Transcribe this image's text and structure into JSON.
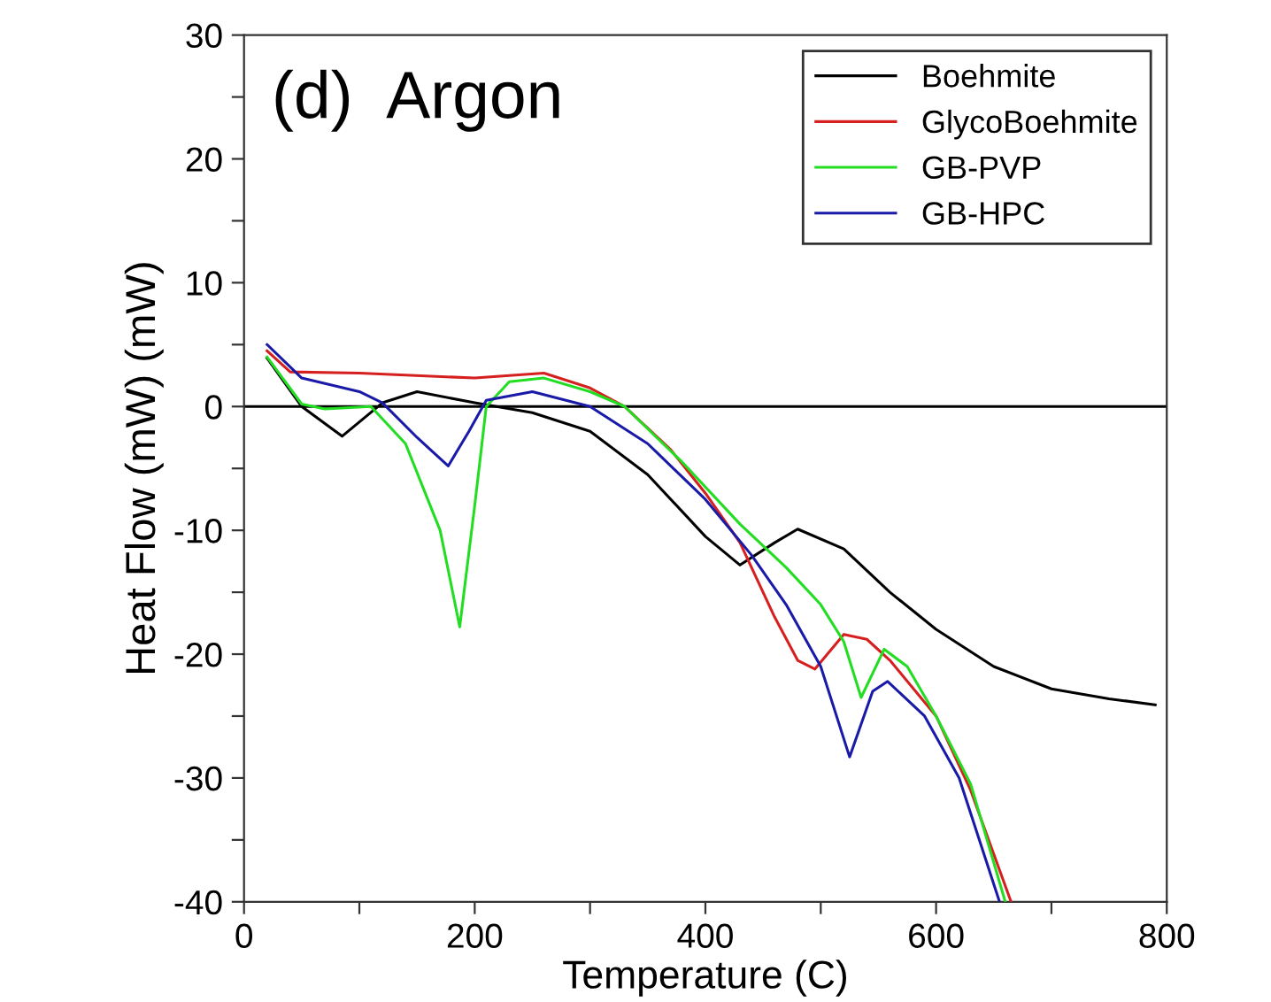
{
  "chart_data": {
    "type": "line",
    "xlabel": "Temperature (C)",
    "ylabel": "Heat Flow (mW) (mW)",
    "annotations": [
      "(d)  Argon"
    ],
    "xlim": [
      0,
      800
    ],
    "ylim": [
      -40,
      30
    ],
    "xticks": [
      0,
      {
        "value": 100,
        "label": null
      },
      200,
      {
        "value": 300,
        "label": null
      },
      400,
      {
        "value": 500,
        "label": null
      },
      600,
      {
        "value": 700,
        "label": null
      },
      800
    ],
    "yticks": [
      -40,
      {
        "value": -35,
        "label": null
      },
      -30,
      {
        "value": -25,
        "label": null
      },
      -20,
      {
        "value": -15,
        "label": null
      },
      -10,
      {
        "value": -5,
        "label": null
      },
      0,
      {
        "value": 5,
        "label": null
      },
      10,
      {
        "value": 15,
        "label": null
      },
      20,
      {
        "value": 25,
        "label": null
      },
      30
    ],
    "grid": false,
    "legend": "top right",
    "marker": "none",
    "line_style": "solid",
    "ref_lines": [
      {
        "axis": "y",
        "value": 0,
        "label": null,
        "color": "#000000"
      }
    ],
    "series": [
      {
        "name": "Boehmite",
        "color": "#000000",
        "x": [
          20,
          50,
          85,
          120,
          150,
          200,
          250,
          300,
          350,
          400,
          430,
          460,
          480,
          520,
          560,
          600,
          650,
          700,
          750,
          790
        ],
        "values": [
          3.9,
          0,
          -2.4,
          0.3,
          1.2,
          0.3,
          -0.5,
          -2,
          -5.5,
          -10.5,
          -12.8,
          -11,
          -9.9,
          -11.5,
          -15,
          -18,
          -21,
          -22.8,
          -23.6,
          -24.1
        ]
      },
      {
        "name": "GlycoBoehmite",
        "color": "#d62020",
        "x": [
          20,
          40,
          100,
          200,
          260,
          300,
          330,
          370,
          400,
          430,
          460,
          480,
          495,
          520,
          540,
          560,
          600,
          630,
          665
        ],
        "values": [
          4.5,
          2.8,
          2.7,
          2.3,
          2.7,
          1.5,
          0,
          -3.5,
          -7,
          -11,
          -17,
          -20.5,
          -21.2,
          -18.4,
          -18.8,
          -20.5,
          -25,
          -31,
          -40
        ]
      },
      {
        "name": "GB-PVP",
        "color": "#22dd22",
        "x": [
          20,
          50,
          70,
          110,
          140,
          170,
          187,
          200,
          210,
          230,
          260,
          300,
          330,
          380,
          430,
          470,
          500,
          520,
          535,
          555,
          575,
          600,
          630,
          660
        ],
        "values": [
          4,
          0.2,
          -0.2,
          0,
          -3,
          -10,
          -17.8,
          -8,
          0,
          2,
          2.3,
          1.2,
          0,
          -4.5,
          -9.5,
          -13,
          -16,
          -19,
          -23.5,
          -19.6,
          -21,
          -25,
          -30.5,
          -40
        ]
      },
      {
        "name": "GB-HPC",
        "color": "#1a1aa8",
        "x": [
          20,
          50,
          100,
          120,
          150,
          177,
          195,
          210,
          250,
          300,
          350,
          400,
          440,
          470,
          500,
          525,
          545,
          558,
          590,
          620,
          655
        ],
        "values": [
          5,
          2.3,
          1.2,
          0.3,
          -2.5,
          -4.8,
          -2,
          0.5,
          1.2,
          0,
          -3,
          -7.5,
          -12,
          -16,
          -21,
          -28.3,
          -23,
          -22.2,
          -25,
          -30,
          -40
        ]
      }
    ]
  }
}
